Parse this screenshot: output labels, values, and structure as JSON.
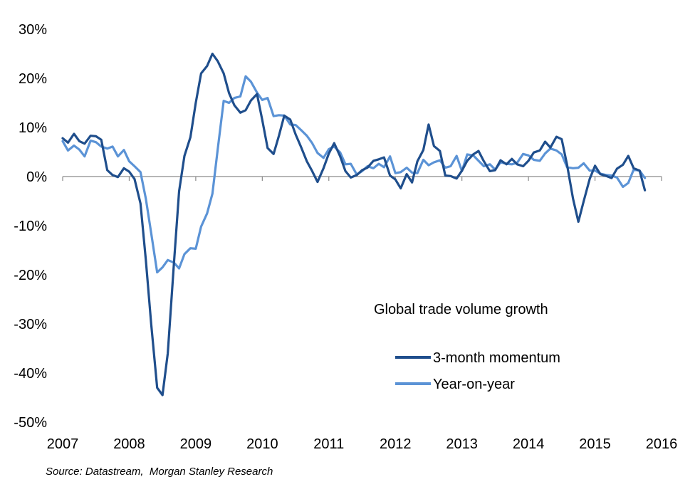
{
  "chart_data": {
    "type": "line",
    "title": "Global trade volume growth",
    "xlabel": "",
    "ylabel": "",
    "xlim": [
      2007,
      2016
    ],
    "ylim": [
      -50,
      30
    ],
    "x_ticks": [
      2007,
      2008,
      2009,
      2010,
      2011,
      2012,
      2013,
      2014,
      2015,
      2016
    ],
    "x_tick_labels": [
      "2007",
      "2008",
      "2009",
      "2010",
      "2011",
      "2012",
      "2013",
      "2014",
      "2015",
      "2016"
    ],
    "y_ticks": [
      30,
      20,
      10,
      0,
      -10,
      -20,
      -30,
      -40,
      -50
    ],
    "y_tick_labels": [
      "30%",
      "20%",
      "10%",
      "0%",
      "-10%",
      "-20%",
      "-30%",
      "-40%",
      "-50%"
    ],
    "series": [
      {
        "name": "3-month momentum",
        "color": "#1f4e8c",
        "x": [
          2007.0,
          2007.08,
          2007.17,
          2007.25,
          2007.33,
          2007.42,
          2007.5,
          2007.58,
          2007.67,
          2007.75,
          2007.83,
          2007.92,
          2008.0,
          2008.08,
          2008.17,
          2008.25,
          2008.33,
          2008.42,
          2008.5,
          2008.58,
          2008.67,
          2008.75,
          2008.83,
          2008.92,
          2009.0,
          2009.08,
          2009.17,
          2009.25,
          2009.33,
          2009.42,
          2009.5,
          2009.58,
          2009.67,
          2009.75,
          2009.83,
          2009.92,
          2010.0,
          2010.08,
          2010.17,
          2010.25,
          2010.33,
          2010.42,
          2010.5,
          2010.58,
          2010.67,
          2010.75,
          2010.83,
          2010.92,
          2011.0,
          2011.08,
          2011.17,
          2011.25,
          2011.33,
          2011.42,
          2011.5,
          2011.58,
          2011.67,
          2011.75,
          2011.83,
          2011.92,
          2012.0,
          2012.08,
          2012.17,
          2012.25,
          2012.33,
          2012.42,
          2012.5,
          2012.58,
          2012.67,
          2012.75,
          2012.83,
          2012.92,
          2013.0,
          2013.08,
          2013.17,
          2013.25,
          2013.33,
          2013.42,
          2013.5,
          2013.58,
          2013.67,
          2013.75,
          2013.83,
          2013.92,
          2014.0,
          2014.08,
          2014.17,
          2014.25,
          2014.33,
          2014.42,
          2014.5,
          2014.58,
          2014.67,
          2014.75,
          2014.83,
          2014.92,
          2015.0,
          2015.08,
          2015.17,
          2015.25,
          2015.33,
          2015.42,
          2015.5,
          2015.58,
          2015.67,
          2015.75
        ],
        "values": [
          7.8,
          6.9,
          8.7,
          7.2,
          6.7,
          8.3,
          8.2,
          7.5,
          1.3,
          0.3,
          -0.1,
          1.7,
          1.0,
          -0.5,
          -5.5,
          -17,
          -30,
          -43,
          -44.5,
          -36,
          -18,
          -3,
          4.2,
          8,
          15,
          21,
          22.5,
          25,
          23.5,
          21,
          17,
          14.5,
          13,
          13.5,
          15.5,
          16.8,
          11.5,
          5.8,
          4.6,
          8.3,
          12.4,
          11.6,
          8.6,
          6.1,
          3.1,
          1.1,
          -1.1,
          1.7,
          4.7,
          6.8,
          4.1,
          1.1,
          -0.2,
          0.3,
          1.3,
          1.8,
          3.2,
          3.5,
          3.9,
          0.2,
          -0.6,
          -2.4,
          0.5,
          -1.2,
          3.1,
          5.4,
          10.6,
          6.2,
          5.2,
          0.2,
          0.1,
          -0.4,
          1.2,
          3.2,
          4.5,
          5.2,
          3.1,
          1.1,
          1.3,
          3.3,
          2.5,
          3.6,
          2.5,
          2.1,
          3.2,
          4.9,
          5.3,
          7.1,
          5.9,
          8.1,
          7.6,
          2.4,
          -4.5,
          -9.2,
          -5.0,
          -0.5,
          2.2,
          0.5,
          0.1,
          -0.3,
          1.6,
          2.4,
          4.2,
          1.7,
          1.2,
          -2.8
        ]
      },
      {
        "name": "Year-on-year",
        "color": "#5b93d6",
        "x": [
          2007.0,
          2007.08,
          2007.17,
          2007.25,
          2007.33,
          2007.42,
          2007.5,
          2007.58,
          2007.67,
          2007.75,
          2007.83,
          2007.92,
          2008.0,
          2008.08,
          2008.17,
          2008.25,
          2008.33,
          2008.42,
          2008.5,
          2008.58,
          2008.67,
          2008.75,
          2008.83,
          2008.92,
          2009.0,
          2009.08,
          2009.17,
          2009.25,
          2009.33,
          2009.42,
          2009.5,
          2009.58,
          2009.67,
          2009.75,
          2009.83,
          2009.92,
          2010.0,
          2010.08,
          2010.17,
          2010.25,
          2010.33,
          2010.42,
          2010.5,
          2010.58,
          2010.67,
          2010.75,
          2010.83,
          2010.92,
          2011.0,
          2011.08,
          2011.17,
          2011.25,
          2011.33,
          2011.42,
          2011.5,
          2011.58,
          2011.67,
          2011.75,
          2011.83,
          2011.92,
          2012.0,
          2012.08,
          2012.17,
          2012.25,
          2012.33,
          2012.42,
          2012.5,
          2012.58,
          2012.67,
          2012.75,
          2012.83,
          2012.92,
          2013.0,
          2013.08,
          2013.17,
          2013.25,
          2013.33,
          2013.42,
          2013.5,
          2013.58,
          2013.67,
          2013.75,
          2013.83,
          2013.92,
          2014.0,
          2014.08,
          2014.17,
          2014.25,
          2014.33,
          2014.42,
          2014.5,
          2014.58,
          2014.67,
          2014.75,
          2014.83,
          2014.92,
          2015.0,
          2015.08,
          2015.17,
          2015.25,
          2015.33,
          2015.42,
          2015.5,
          2015.58,
          2015.67,
          2015.75
        ],
        "values": [
          7.2,
          5.3,
          6.3,
          5.5,
          4.1,
          7.3,
          7.0,
          6.1,
          5.7,
          6.1,
          4.1,
          5.4,
          3.1,
          2.1,
          0.9,
          -4.5,
          -11.5,
          -19.5,
          -18.5,
          -17,
          -17.5,
          -18.7,
          -15.8,
          -14.6,
          -14.7,
          -10.2,
          -7.5,
          -3.5,
          5.5,
          15.4,
          15,
          16,
          16.3,
          20.4,
          19.3,
          17.1,
          15.6,
          16,
          12.3,
          12.5,
          12.4,
          10.6,
          10.5,
          9.5,
          8.3,
          6.8,
          4.8,
          3.8,
          5.6,
          6.1,
          4.9,
          2.5,
          2.6,
          0.4,
          1.1,
          2.1,
          1.7,
          2.6,
          1.9,
          4.1,
          0.7,
          0.9,
          1.8,
          0.8,
          0.7,
          3.4,
          2.3,
          2.9,
          3.3,
          1.8,
          2.1,
          4.2,
          1.1,
          4.5,
          4.3,
          3.2,
          2.1,
          2.5,
          1.4,
          2.9,
          2.6,
          2.5,
          2.8,
          4.6,
          4.3,
          3.4,
          3.2,
          4.7,
          5.7,
          5.3,
          4.5,
          1.9,
          1.7,
          1.8,
          2.7,
          1.2,
          1.2,
          0.6,
          0.3,
          0.2,
          -0.2,
          -2.1,
          -1.3,
          1.4,
          1.2,
          -0.3
        ]
      }
    ],
    "legend": {
      "placement": "right-middle",
      "entries": [
        "3-month momentum",
        "Year-on-year"
      ]
    },
    "grid": false,
    "source": "Source: Datastream,  Morgan Stanley Research"
  }
}
